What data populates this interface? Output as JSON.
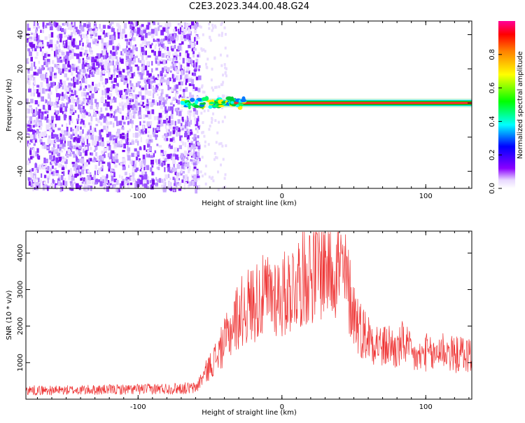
{
  "title": "C2E3.2023.344.00.48.G24",
  "chart_data": [
    {
      "type": "heatmap",
      "xlabel": "Height of straight line (km)",
      "ylabel": "Frequency (Hz)",
      "xlim": [
        -178,
        132
      ],
      "ylim": [
        -50,
        48
      ],
      "x_ticks": [
        -100,
        0,
        100
      ],
      "y_ticks": [
        -40,
        -20,
        0,
        20,
        40
      ],
      "noise_region": {
        "x": [
          -178,
          -58
        ],
        "description": "broadband noise at amplitude 0.0-0.15"
      },
      "signal_line": {
        "frequency": 0,
        "x_start": -70,
        "x_end": 132,
        "amplitude": 0.95
      },
      "colorbar": {
        "label": "Normalized spectral amplitude",
        "range": [
          0,
          1
        ],
        "ticks": [
          0.0,
          0.2,
          0.4,
          0.6,
          0.8
        ]
      }
    },
    {
      "type": "line",
      "xlabel": "Height of straight line (km)",
      "ylabel": "SNR (10 * v/v)",
      "xlim": [
        -178,
        132
      ],
      "ylim": [
        0,
        4600
      ],
      "x_ticks": [
        -100,
        0,
        100
      ],
      "y_ticks": [
        1000,
        2000,
        3000,
        4000
      ],
      "color": "#ee3333",
      "series": [
        {
          "x": [
            -178,
            -160,
            -140,
            -120,
            -100,
            -80,
            -70,
            -60,
            -52,
            -45,
            -38,
            -32,
            -28,
            -22,
            -18,
            -12,
            -5,
            0,
            5,
            10,
            15,
            20,
            25,
            30,
            35,
            40,
            45,
            50,
            55,
            60,
            65,
            70,
            75,
            80,
            85,
            90,
            95,
            100,
            105,
            110,
            115,
            120,
            125,
            132
          ],
          "values": [
            250,
            240,
            250,
            260,
            270,
            290,
            300,
            300,
            800,
            1200,
            1700,
            2200,
            2400,
            2600,
            2700,
            2800,
            2900,
            2800,
            3000,
            3200,
            3400,
            3500,
            3600,
            3700,
            3700,
            3600,
            3200,
            2400,
            1900,
            1700,
            1600,
            1400,
            1500,
            1300,
            1600,
            1200,
            1100,
            1300,
            1150,
            1400,
            1300,
            1200,
            1250,
            1200
          ]
        }
      ]
    }
  ]
}
